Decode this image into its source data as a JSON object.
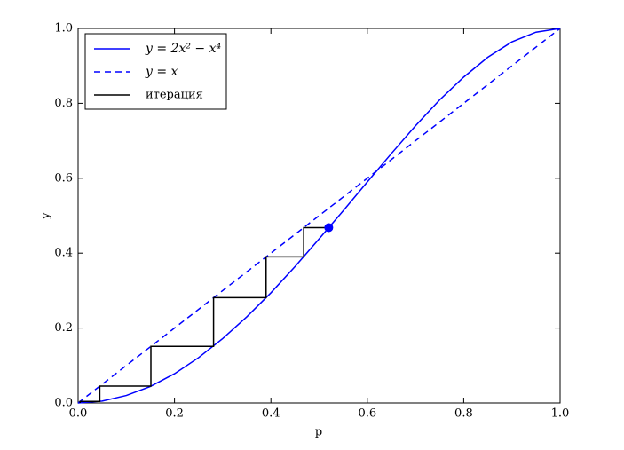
{
  "chart_data": {
    "type": "line",
    "xlabel": "p",
    "ylabel": "y",
    "xlim": [
      0,
      1
    ],
    "ylim": [
      0,
      1
    ],
    "xticks": [
      {
        "value": 0,
        "label": "0.0"
      },
      {
        "value": 0.2,
        "label": "0.2"
      },
      {
        "value": 0.4,
        "label": "0.4"
      },
      {
        "value": 0.6,
        "label": "0.6"
      },
      {
        "value": 0.8,
        "label": "0.8"
      },
      {
        "value": 1,
        "label": "1.0"
      }
    ],
    "yticks": [
      {
        "value": 0,
        "label": "0.0"
      },
      {
        "value": 0.2,
        "label": "0.2"
      },
      {
        "value": 0.4,
        "label": "0.4"
      },
      {
        "value": 0.6,
        "label": "0.6"
      },
      {
        "value": 0.8,
        "label": "0.8"
      },
      {
        "value": 1,
        "label": "1.0"
      }
    ],
    "legend": "upper left",
    "series": [
      {
        "name": "y = 2x² − x⁴",
        "color": "#0000ff",
        "dash": false,
        "x": [
          0,
          0.05,
          0.1,
          0.15,
          0.2,
          0.25,
          0.3,
          0.35,
          0.4,
          0.45,
          0.5,
          0.55,
          0.6,
          0.65,
          0.7,
          0.75,
          0.8,
          0.85,
          0.9,
          0.95,
          1
        ],
        "values": [
          0,
          0.005,
          0.02,
          0.044,
          0.078,
          0.121,
          0.172,
          0.23,
          0.294,
          0.364,
          0.438,
          0.513,
          0.59,
          0.666,
          0.74,
          0.809,
          0.87,
          0.923,
          0.964,
          0.99,
          1
        ]
      },
      {
        "name": "y = x",
        "color": "#0000ff",
        "dash": true,
        "x": [
          0,
          1
        ],
        "values": [
          0,
          1
        ]
      },
      {
        "name": "итерация",
        "color": "#000000",
        "dash": false,
        "x": [
          0.52,
          0.468,
          0.468,
          0.39,
          0.39,
          0.281,
          0.281,
          0.151,
          0.151,
          0.045,
          0.045,
          0.004,
          0.004
        ],
        "values": [
          0.468,
          0.468,
          0.39,
          0.39,
          0.281,
          0.281,
          0.151,
          0.151,
          0.045,
          0.045,
          0.004,
          0.004,
          0
        ]
      }
    ],
    "marker": {
      "x": 0.52,
      "y": 0.468,
      "color": "#0000ff"
    }
  }
}
